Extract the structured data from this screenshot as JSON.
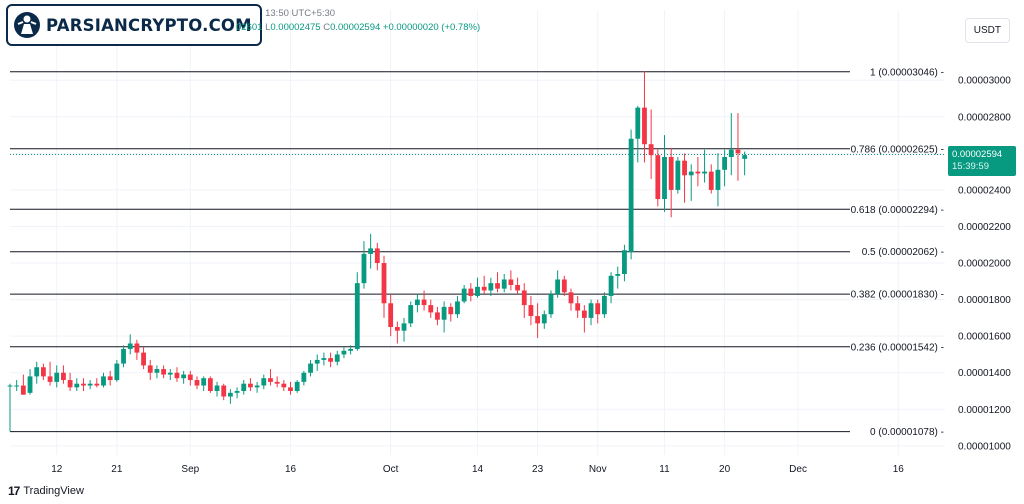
{
  "header": {
    "publish_line": "published on TradingView.com, Nov 25, 2024 13:50 UTC+5:30",
    "ohlc_tail": "02601",
    "low_label": "L",
    "low_value": "0.00002475",
    "close_label": "C",
    "close_value": "0.00002594",
    "change": "+0.00000020 (+0.78%)"
  },
  "logo": {
    "text": "PARSIANCRYPTO.COM"
  },
  "currency": "USDT",
  "price_tag": {
    "price": "0.00002594",
    "countdown": "15:39:59"
  },
  "brand": {
    "icon": "17",
    "name": "TradingView"
  },
  "colors": {
    "up": "#089981",
    "down": "#f23645",
    "fib_line": "#131722",
    "last_price": "#089981"
  },
  "chart_data": {
    "type": "candlestick",
    "y_axis": {
      "ticks": [
        "0.00003000",
        "0.00002800",
        "0.00002600",
        "0.00002400",
        "0.00002200",
        "0.00002000",
        "0.00001800",
        "0.00001600",
        "0.00001400",
        "0.00001200",
        "0.00001000"
      ],
      "tick_values": [
        3.0,
        2.8,
        2.6,
        2.4,
        2.2,
        2.0,
        1.8,
        1.6,
        1.4,
        1.2,
        1.0
      ],
      "unit_multiplier": "1e-5",
      "ylim": [
        0.95,
        3.22
      ]
    },
    "x_axis": {
      "tick_labels": [
        "12",
        "21",
        "Sep",
        "16",
        "Oct",
        "14",
        "23",
        "Nov",
        "11",
        "20",
        "Dec",
        "16"
      ],
      "tick_dates": [
        "2024-08-12",
        "2024-08-21",
        "2024-09-01",
        "2024-09-16",
        "2024-10-01",
        "2024-10-14",
        "2024-10-23",
        "2024-11-01",
        "2024-11-11",
        "2024-11-20",
        "2024-12-01",
        "2024-12-16"
      ],
      "xlim": [
        "2024-08-05",
        "2024-12-23"
      ]
    },
    "fib_levels": [
      {
        "ratio": "1",
        "label": "1 (0.00003046)",
        "value": 3.046
      },
      {
        "ratio": "0.786",
        "label": "0.786 (0.00002625)",
        "value": 2.625
      },
      {
        "ratio": "0.618",
        "label": "0.618 (0.00002294)",
        "value": 2.294
      },
      {
        "ratio": "0.5",
        "label": "0.5 (0.00002062)",
        "value": 2.062
      },
      {
        "ratio": "0.382",
        "label": "0.382 (0.00001830)",
        "value": 1.83
      },
      {
        "ratio": "0.236",
        "label": "0.236 (0.00001542)",
        "value": 1.542
      },
      {
        "ratio": "0",
        "label": "0 (0.00001078)",
        "value": 1.078
      }
    ],
    "last_price": 2.594,
    "candles": [
      {
        "d": "2024-08-05",
        "o": 1.33,
        "h": 1.34,
        "l": 1.08,
        "c": 1.33
      },
      {
        "d": "2024-08-06",
        "o": 1.33,
        "h": 1.36,
        "l": 1.3,
        "c": 1.33
      },
      {
        "d": "2024-08-07",
        "o": 1.33,
        "h": 1.39,
        "l": 1.28,
        "c": 1.28
      },
      {
        "d": "2024-08-08",
        "o": 1.29,
        "h": 1.42,
        "l": 1.28,
        "c": 1.38
      },
      {
        "d": "2024-08-09",
        "o": 1.38,
        "h": 1.46,
        "l": 1.34,
        "c": 1.43
      },
      {
        "d": "2024-08-10",
        "o": 1.43,
        "h": 1.45,
        "l": 1.36,
        "c": 1.38
      },
      {
        "d": "2024-08-11",
        "o": 1.38,
        "h": 1.46,
        "l": 1.33,
        "c": 1.35
      },
      {
        "d": "2024-08-12",
        "o": 1.35,
        "h": 1.44,
        "l": 1.32,
        "c": 1.4
      },
      {
        "d": "2024-08-13",
        "o": 1.4,
        "h": 1.44,
        "l": 1.34,
        "c": 1.36
      },
      {
        "d": "2024-08-14",
        "o": 1.36,
        "h": 1.4,
        "l": 1.3,
        "c": 1.32
      },
      {
        "d": "2024-08-15",
        "o": 1.32,
        "h": 1.37,
        "l": 1.3,
        "c": 1.34
      },
      {
        "d": "2024-08-16",
        "o": 1.34,
        "h": 1.37,
        "l": 1.3,
        "c": 1.33
      },
      {
        "d": "2024-08-17",
        "o": 1.33,
        "h": 1.36,
        "l": 1.31,
        "c": 1.34
      },
      {
        "d": "2024-08-18",
        "o": 1.34,
        "h": 1.37,
        "l": 1.32,
        "c": 1.33
      },
      {
        "d": "2024-08-19",
        "o": 1.33,
        "h": 1.4,
        "l": 1.32,
        "c": 1.38
      },
      {
        "d": "2024-08-20",
        "o": 1.38,
        "h": 1.41,
        "l": 1.33,
        "c": 1.36
      },
      {
        "d": "2024-08-21",
        "o": 1.36,
        "h": 1.47,
        "l": 1.35,
        "c": 1.45
      },
      {
        "d": "2024-08-22",
        "o": 1.45,
        "h": 1.55,
        "l": 1.43,
        "c": 1.53
      },
      {
        "d": "2024-08-23",
        "o": 1.53,
        "h": 1.61,
        "l": 1.5,
        "c": 1.56
      },
      {
        "d": "2024-08-24",
        "o": 1.56,
        "h": 1.58,
        "l": 1.47,
        "c": 1.51
      },
      {
        "d": "2024-08-25",
        "o": 1.51,
        "h": 1.54,
        "l": 1.42,
        "c": 1.44
      },
      {
        "d": "2024-08-26",
        "o": 1.44,
        "h": 1.47,
        "l": 1.36,
        "c": 1.4
      },
      {
        "d": "2024-08-27",
        "o": 1.4,
        "h": 1.44,
        "l": 1.37,
        "c": 1.42
      },
      {
        "d": "2024-08-28",
        "o": 1.42,
        "h": 1.44,
        "l": 1.37,
        "c": 1.39
      },
      {
        "d": "2024-08-29",
        "o": 1.39,
        "h": 1.42,
        "l": 1.36,
        "c": 1.4
      },
      {
        "d": "2024-08-30",
        "o": 1.4,
        "h": 1.43,
        "l": 1.35,
        "c": 1.37
      },
      {
        "d": "2024-08-31",
        "o": 1.37,
        "h": 1.41,
        "l": 1.34,
        "c": 1.39
      },
      {
        "d": "2024-09-01",
        "o": 1.39,
        "h": 1.41,
        "l": 1.33,
        "c": 1.36
      },
      {
        "d": "2024-09-02",
        "o": 1.36,
        "h": 1.38,
        "l": 1.31,
        "c": 1.33
      },
      {
        "d": "2024-09-03",
        "o": 1.33,
        "h": 1.38,
        "l": 1.3,
        "c": 1.37
      },
      {
        "d": "2024-09-04",
        "o": 1.37,
        "h": 1.38,
        "l": 1.29,
        "c": 1.3
      },
      {
        "d": "2024-09-05",
        "o": 1.3,
        "h": 1.35,
        "l": 1.27,
        "c": 1.33
      },
      {
        "d": "2024-09-06",
        "o": 1.33,
        "h": 1.34,
        "l": 1.25,
        "c": 1.27
      },
      {
        "d": "2024-09-07",
        "o": 1.27,
        "h": 1.31,
        "l": 1.23,
        "c": 1.29
      },
      {
        "d": "2024-09-08",
        "o": 1.29,
        "h": 1.32,
        "l": 1.26,
        "c": 1.3
      },
      {
        "d": "2024-09-09",
        "o": 1.3,
        "h": 1.36,
        "l": 1.28,
        "c": 1.34
      },
      {
        "d": "2024-09-10",
        "o": 1.34,
        "h": 1.37,
        "l": 1.3,
        "c": 1.32
      },
      {
        "d": "2024-09-11",
        "o": 1.32,
        "h": 1.35,
        "l": 1.29,
        "c": 1.33
      },
      {
        "d": "2024-09-12",
        "o": 1.33,
        "h": 1.39,
        "l": 1.31,
        "c": 1.37
      },
      {
        "d": "2024-09-13",
        "o": 1.37,
        "h": 1.42,
        "l": 1.33,
        "c": 1.35
      },
      {
        "d": "2024-09-14",
        "o": 1.35,
        "h": 1.38,
        "l": 1.32,
        "c": 1.34
      },
      {
        "d": "2024-09-15",
        "o": 1.34,
        "h": 1.36,
        "l": 1.3,
        "c": 1.32
      },
      {
        "d": "2024-09-16",
        "o": 1.32,
        "h": 1.35,
        "l": 1.28,
        "c": 1.3
      },
      {
        "d": "2024-09-17",
        "o": 1.3,
        "h": 1.36,
        "l": 1.29,
        "c": 1.35
      },
      {
        "d": "2024-09-18",
        "o": 1.35,
        "h": 1.41,
        "l": 1.33,
        "c": 1.4
      },
      {
        "d": "2024-09-19",
        "o": 1.4,
        "h": 1.47,
        "l": 1.38,
        "c": 1.45
      },
      {
        "d": "2024-09-20",
        "o": 1.45,
        "h": 1.5,
        "l": 1.41,
        "c": 1.47
      },
      {
        "d": "2024-09-21",
        "o": 1.47,
        "h": 1.51,
        "l": 1.44,
        "c": 1.48
      },
      {
        "d": "2024-09-22",
        "o": 1.48,
        "h": 1.51,
        "l": 1.43,
        "c": 1.46
      },
      {
        "d": "2024-09-23",
        "o": 1.46,
        "h": 1.52,
        "l": 1.44,
        "c": 1.5
      },
      {
        "d": "2024-09-24",
        "o": 1.5,
        "h": 1.54,
        "l": 1.48,
        "c": 1.52
      },
      {
        "d": "2024-09-25",
        "o": 1.52,
        "h": 1.55,
        "l": 1.5,
        "c": 1.53
      },
      {
        "d": "2024-09-26",
        "o": 1.53,
        "h": 1.95,
        "l": 1.52,
        "c": 1.89
      },
      {
        "d": "2024-09-27",
        "o": 1.89,
        "h": 2.12,
        "l": 1.86,
        "c": 2.05
      },
      {
        "d": "2024-09-28",
        "o": 2.05,
        "h": 2.16,
        "l": 1.97,
        "c": 2.08
      },
      {
        "d": "2024-09-29",
        "o": 2.08,
        "h": 2.11,
        "l": 1.96,
        "c": 2.0
      },
      {
        "d": "2024-09-30",
        "o": 2.0,
        "h": 2.04,
        "l": 1.7,
        "c": 1.78
      },
      {
        "d": "2024-10-01",
        "o": 1.78,
        "h": 1.83,
        "l": 1.6,
        "c": 1.65
      },
      {
        "d": "2024-10-02",
        "o": 1.65,
        "h": 1.68,
        "l": 1.56,
        "c": 1.63
      },
      {
        "d": "2024-10-03",
        "o": 1.63,
        "h": 1.7,
        "l": 1.57,
        "c": 1.67
      },
      {
        "d": "2024-10-04",
        "o": 1.67,
        "h": 1.79,
        "l": 1.65,
        "c": 1.77
      },
      {
        "d": "2024-10-05",
        "o": 1.77,
        "h": 1.83,
        "l": 1.73,
        "c": 1.8
      },
      {
        "d": "2024-10-06",
        "o": 1.8,
        "h": 1.85,
        "l": 1.74,
        "c": 1.77
      },
      {
        "d": "2024-10-07",
        "o": 1.77,
        "h": 1.8,
        "l": 1.7,
        "c": 1.73
      },
      {
        "d": "2024-10-08",
        "o": 1.73,
        "h": 1.76,
        "l": 1.66,
        "c": 1.69
      },
      {
        "d": "2024-10-09",
        "o": 1.69,
        "h": 1.79,
        "l": 1.62,
        "c": 1.76
      },
      {
        "d": "2024-10-10",
        "o": 1.76,
        "h": 1.78,
        "l": 1.68,
        "c": 1.72
      },
      {
        "d": "2024-10-11",
        "o": 1.72,
        "h": 1.82,
        "l": 1.7,
        "c": 1.79
      },
      {
        "d": "2024-10-12",
        "o": 1.79,
        "h": 1.88,
        "l": 1.78,
        "c": 1.86
      },
      {
        "d": "2024-10-13",
        "o": 1.86,
        "h": 1.89,
        "l": 1.79,
        "c": 1.82
      },
      {
        "d": "2024-10-14",
        "o": 1.82,
        "h": 1.92,
        "l": 1.81,
        "c": 1.87
      },
      {
        "d": "2024-10-15",
        "o": 1.87,
        "h": 1.93,
        "l": 1.83,
        "c": 1.85
      },
      {
        "d": "2024-10-16",
        "o": 1.85,
        "h": 1.92,
        "l": 1.82,
        "c": 1.89
      },
      {
        "d": "2024-10-17",
        "o": 1.89,
        "h": 1.95,
        "l": 1.84,
        "c": 1.86
      },
      {
        "d": "2024-10-18",
        "o": 1.86,
        "h": 1.94,
        "l": 1.84,
        "c": 1.91
      },
      {
        "d": "2024-10-19",
        "o": 1.91,
        "h": 1.96,
        "l": 1.85,
        "c": 1.88
      },
      {
        "d": "2024-10-20",
        "o": 1.88,
        "h": 1.92,
        "l": 1.83,
        "c": 1.85
      },
      {
        "d": "2024-10-21",
        "o": 1.85,
        "h": 1.89,
        "l": 1.7,
        "c": 1.77
      },
      {
        "d": "2024-10-22",
        "o": 1.77,
        "h": 1.82,
        "l": 1.66,
        "c": 1.71
      },
      {
        "d": "2024-10-23",
        "o": 1.71,
        "h": 1.78,
        "l": 1.59,
        "c": 1.67
      },
      {
        "d": "2024-10-24",
        "o": 1.67,
        "h": 1.74,
        "l": 1.64,
        "c": 1.72
      },
      {
        "d": "2024-10-25",
        "o": 1.72,
        "h": 1.85,
        "l": 1.7,
        "c": 1.83
      },
      {
        "d": "2024-10-26",
        "o": 1.83,
        "h": 1.96,
        "l": 1.81,
        "c": 1.91
      },
      {
        "d": "2024-10-27",
        "o": 1.91,
        "h": 1.93,
        "l": 1.82,
        "c": 1.84
      },
      {
        "d": "2024-10-28",
        "o": 1.84,
        "h": 1.86,
        "l": 1.74,
        "c": 1.78
      },
      {
        "d": "2024-10-29",
        "o": 1.78,
        "h": 1.82,
        "l": 1.7,
        "c": 1.74
      },
      {
        "d": "2024-10-30",
        "o": 1.74,
        "h": 1.77,
        "l": 1.62,
        "c": 1.7
      },
      {
        "d": "2024-10-31",
        "o": 1.7,
        "h": 1.8,
        "l": 1.66,
        "c": 1.78
      },
      {
        "d": "2024-11-01",
        "o": 1.78,
        "h": 1.8,
        "l": 1.67,
        "c": 1.72
      },
      {
        "d": "2024-11-02",
        "o": 1.72,
        "h": 1.84,
        "l": 1.7,
        "c": 1.82
      },
      {
        "d": "2024-11-03",
        "o": 1.82,
        "h": 1.95,
        "l": 1.78,
        "c": 1.93
      },
      {
        "d": "2024-11-04",
        "o": 1.93,
        "h": 1.98,
        "l": 1.86,
        "c": 1.94
      },
      {
        "d": "2024-11-05",
        "o": 1.94,
        "h": 2.1,
        "l": 1.9,
        "c": 2.07
      },
      {
        "d": "2024-11-06",
        "o": 2.06,
        "h": 2.73,
        "l": 2.02,
        "c": 2.68
      },
      {
        "d": "2024-11-07",
        "o": 2.68,
        "h": 2.86,
        "l": 2.55,
        "c": 2.85
      },
      {
        "d": "2024-11-08",
        "o": 2.85,
        "h": 3.05,
        "l": 2.55,
        "c": 2.65
      },
      {
        "d": "2024-11-09",
        "o": 2.65,
        "h": 2.84,
        "l": 2.46,
        "c": 2.59
      },
      {
        "d": "2024-11-10",
        "o": 2.59,
        "h": 2.62,
        "l": 2.31,
        "c": 2.35
      },
      {
        "d": "2024-11-11",
        "o": 2.35,
        "h": 2.7,
        "l": 2.28,
        "c": 2.58
      },
      {
        "d": "2024-11-12",
        "o": 2.58,
        "h": 2.63,
        "l": 2.25,
        "c": 2.4
      },
      {
        "d": "2024-11-13",
        "o": 2.4,
        "h": 2.58,
        "l": 2.38,
        "c": 2.56
      },
      {
        "d": "2024-11-14",
        "o": 2.56,
        "h": 2.6,
        "l": 2.33,
        "c": 2.48
      },
      {
        "d": "2024-11-15",
        "o": 2.48,
        "h": 2.54,
        "l": 2.34,
        "c": 2.5
      },
      {
        "d": "2024-11-16",
        "o": 2.5,
        "h": 2.58,
        "l": 2.42,
        "c": 2.49
      },
      {
        "d": "2024-11-17",
        "o": 2.49,
        "h": 2.62,
        "l": 2.44,
        "c": 2.5
      },
      {
        "d": "2024-11-18",
        "o": 2.5,
        "h": 2.54,
        "l": 2.38,
        "c": 2.4
      },
      {
        "d": "2024-11-19",
        "o": 2.4,
        "h": 2.6,
        "l": 2.31,
        "c": 2.51
      },
      {
        "d": "2024-11-20",
        "o": 2.51,
        "h": 2.62,
        "l": 2.42,
        "c": 2.58
      },
      {
        "d": "2024-11-21",
        "o": 2.58,
        "h": 2.82,
        "l": 2.48,
        "c": 2.62
      },
      {
        "d": "2024-11-22",
        "o": 2.62,
        "h": 2.82,
        "l": 2.45,
        "c": 2.6
      },
      {
        "d": "2024-11-23",
        "o": 2.57,
        "h": 2.61,
        "l": 2.48,
        "c": 2.59
      }
    ]
  }
}
